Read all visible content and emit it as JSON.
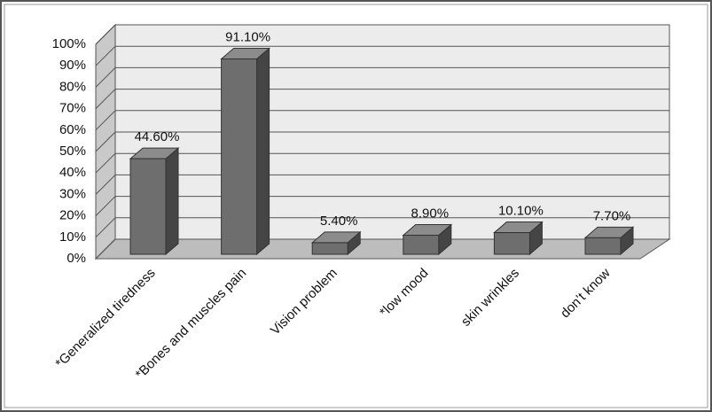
{
  "chart_data": {
    "type": "bar3d",
    "categories": [
      "*Generalized tiredness",
      "*Bones and muscles pain",
      "Vision problem",
      "*low mood",
      "skin wrinkles",
      "don’t know"
    ],
    "values": [
      44.6,
      91.1,
      5.4,
      8.9,
      10.1,
      7.7
    ],
    "value_labels": [
      "44.60%",
      "91.10%",
      "5.40%",
      "8.90%",
      "10.10%",
      "7.70%"
    ],
    "color": "#6e6e6e",
    "ylim": [
      0,
      100
    ],
    "yticks": [
      {
        "value": 0,
        "label": "0%"
      },
      {
        "value": 10,
        "label": "10%"
      },
      {
        "value": 20,
        "label": "20%"
      },
      {
        "value": 30,
        "label": "30%"
      },
      {
        "value": 40,
        "label": "40%"
      },
      {
        "value": 50,
        "label": "50%"
      },
      {
        "value": 60,
        "label": "60%"
      },
      {
        "value": 70,
        "label": "70%"
      },
      {
        "value": 80,
        "label": "80%"
      },
      {
        "value": 90,
        "label": "90%"
      },
      {
        "value": 100,
        "label": "100%"
      }
    ],
    "grid": true
  }
}
